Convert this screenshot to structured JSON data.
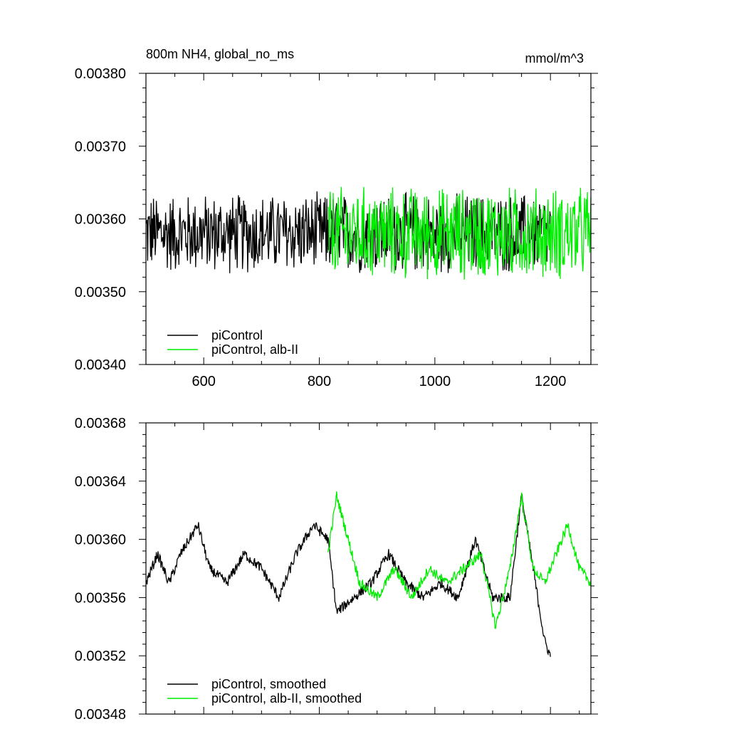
{
  "chart_data": [
    {
      "type": "line",
      "title_left": "800m NH4, global_no_ms",
      "title_right": "mmol/m^3",
      "xlim": [
        500,
        1270
      ],
      "ylim": [
        0.0034,
        0.0038
      ],
      "x_ticks": [
        600,
        800,
        1000,
        1200
      ],
      "x_tick_labels": [
        "600",
        "800",
        "1000",
        "1200"
      ],
      "y_ticks": [
        0.0034,
        0.0035,
        0.0036,
        0.0037,
        0.0038
      ],
      "y_tick_labels": [
        "0.00340",
        "0.00350",
        "0.00360",
        "0.00370",
        "0.00380"
      ],
      "legend_position": "bottom-left",
      "series": [
        {
          "name": "piControl",
          "color": "#000000",
          "x_range": [
            500,
            1200
          ],
          "mean": 0.00358,
          "spread": 6e-05,
          "noise": "high"
        },
        {
          "name": "piControl, alb-II",
          "color": "#00ee00",
          "x_range": [
            815,
            1270
          ],
          "mean": 0.00358,
          "spread": 7e-05,
          "noise": "high"
        }
      ]
    },
    {
      "type": "line",
      "xlim": [
        500,
        1270
      ],
      "ylim": [
        0.00348,
        0.00368
      ],
      "x_ticks": [
        600,
        800,
        1000,
        1200
      ],
      "y_ticks": [
        0.00348,
        0.00352,
        0.00356,
        0.0036,
        0.00364,
        0.00368
      ],
      "y_tick_labels": [
        "0.00348",
        "0.00352",
        "0.00356",
        "0.00360",
        "0.00364",
        "0.00368"
      ],
      "legend_position": "bottom-left",
      "series": [
        {
          "name": "piControl, smoothed",
          "color": "#000000",
          "x_range": [
            500,
            1200
          ],
          "anchors": [
            [
              500,
              0.00357
            ],
            [
              520,
              0.00359
            ],
            [
              540,
              0.00357
            ],
            [
              560,
              0.00359
            ],
            [
              590,
              0.00361
            ],
            [
              610,
              0.00358
            ],
            [
              640,
              0.00357
            ],
            [
              670,
              0.00359
            ],
            [
              700,
              0.00358
            ],
            [
              730,
              0.00356
            ],
            [
              760,
              0.00359
            ],
            [
              790,
              0.00361
            ],
            [
              815,
              0.0036
            ],
            [
              830,
              0.00355
            ],
            [
              860,
              0.00356
            ],
            [
              890,
              0.00357
            ],
            [
              920,
              0.00359
            ],
            [
              950,
              0.00357
            ],
            [
              980,
              0.00356
            ],
            [
              1010,
              0.00357
            ],
            [
              1040,
              0.00356
            ],
            [
              1070,
              0.0036
            ],
            [
              1100,
              0.00356
            ],
            [
              1130,
              0.00356
            ],
            [
              1150,
              0.00363
            ],
            [
              1170,
              0.00358
            ],
            [
              1190,
              0.00353
            ],
            [
              1200,
              0.00352
            ]
          ]
        },
        {
          "name": "piControl, alb-II, smoothed",
          "color": "#00ee00",
          "x_range": [
            815,
            1270
          ],
          "anchors": [
            [
              815,
              0.00359
            ],
            [
              830,
              0.00363
            ],
            [
              850,
              0.0036
            ],
            [
              870,
              0.00357
            ],
            [
              900,
              0.00356
            ],
            [
              930,
              0.00358
            ],
            [
              960,
              0.00356
            ],
            [
              990,
              0.00358
            ],
            [
              1020,
              0.00357
            ],
            [
              1050,
              0.00358
            ],
            [
              1080,
              0.00359
            ],
            [
              1105,
              0.00354
            ],
            [
              1130,
              0.00358
            ],
            [
              1150,
              0.00363
            ],
            [
              1170,
              0.00358
            ],
            [
              1190,
              0.00357
            ],
            [
              1210,
              0.00359
            ],
            [
              1230,
              0.00361
            ],
            [
              1250,
              0.00358
            ],
            [
              1270,
              0.00357
            ]
          ]
        }
      ]
    }
  ]
}
